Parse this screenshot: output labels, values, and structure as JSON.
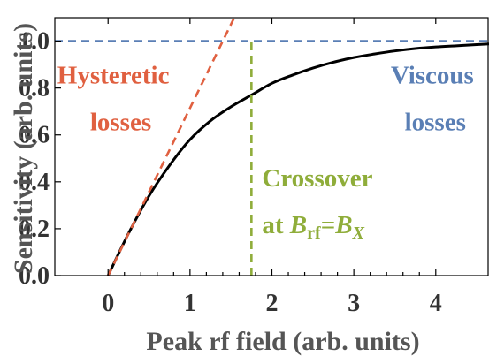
{
  "chart_data": {
    "type": "line",
    "xlabel": "Peak rf field (arb. units)",
    "ylabel": "Sensitivity (arb. units)",
    "xlim": [
      -0.65,
      4.65
    ],
    "ylim": [
      0,
      1.1
    ],
    "x_ticks": [
      "0",
      "1",
      "2",
      "3",
      "4"
    ],
    "y_ticks": [
      "0.0",
      "0.2",
      "0.4",
      "0.6",
      "0.8",
      "1.0"
    ],
    "grid": false,
    "series": [
      {
        "color": "#000000",
        "style": "solid",
        "x": [
          0,
          0.25,
          0.5,
          0.75,
          1.0,
          1.25,
          1.5,
          1.75,
          2.0,
          2.25,
          2.5,
          2.75,
          3.0,
          3.25,
          3.5,
          3.75,
          4.0,
          4.25,
          4.5,
          4.65
        ],
        "y": [
          0,
          0.18,
          0.34,
          0.47,
          0.58,
          0.66,
          0.72,
          0.77,
          0.82,
          0.855,
          0.885,
          0.91,
          0.93,
          0.945,
          0.958,
          0.968,
          0.975,
          0.98,
          0.985,
          0.988
        ]
      },
      {
        "name": "Hysteretic losses",
        "color": "#e06040",
        "style": "dashed",
        "x": [
          0,
          1.54
        ],
        "y": [
          0,
          1.1
        ]
      },
      {
        "name": "Viscous losses",
        "color": "#5a7fb5",
        "style": "dashed",
        "x": [
          -0.65,
          4.65
        ],
        "y": [
          1.0,
          1.0
        ]
      },
      {
        "color": "#8fad3a",
        "style": "dashed",
        "x": [
          1.75,
          1.75
        ],
        "y": [
          0,
          1.0
        ]
      }
    ],
    "annotations": [
      {
        "id": "hysteretic_1",
        "text": "Hysteretic",
        "color": "#e06040",
        "x": -0.62,
        "y": 0.82
      },
      {
        "id": "hysteretic_2",
        "text": "losses",
        "color": "#e06040",
        "x": -0.22,
        "y": 0.62
      },
      {
        "id": "viscous_1",
        "text": "Viscous",
        "color": "#5a7fb5",
        "x": 3.45,
        "y": 0.82
      },
      {
        "id": "viscous_2",
        "text": "losses",
        "color": "#5a7fb5",
        "x": 3.62,
        "y": 0.62
      },
      {
        "id": "crossover",
        "text": "Crossover",
        "color": "#8fad3a",
        "x": 1.88,
        "y": 0.38
      },
      {
        "id": "at_b",
        "text": "at ",
        "sym1": "B",
        "sub1": "rf",
        "eq": "=",
        "sym2": "B",
        "sub2": "X",
        "color": "#8fad3a",
        "x": 1.88,
        "y": 0.18
      }
    ]
  }
}
